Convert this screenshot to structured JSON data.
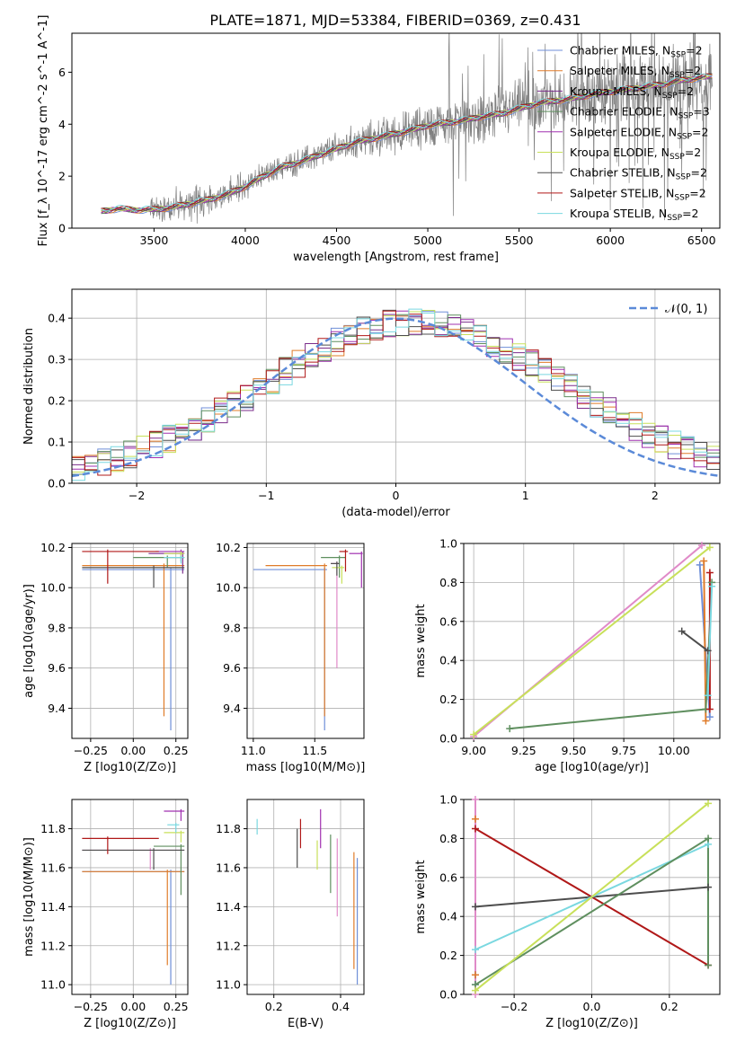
{
  "figure": {
    "title": "PLATE=1871, MJD=53384, FIBERID=0369, z=0.431"
  },
  "colors": {
    "chabrier_miles": "#6f8fd8",
    "salpeter_miles": "#e07c2a",
    "kroupa_miles": "#7b2d8b",
    "chabrier_elodie": "#5f8f5f",
    "salpeter_elodie": "#a030b0",
    "kroupa_elodie": "#c8e05a",
    "chabrier_stelib": "#4d4d4d",
    "salpeter_stelib": "#b01818",
    "kroupa_stelib": "#7ad8e0",
    "data_gray": "#808080",
    "gauss": "#5b8ad8",
    "pink": "#e08ac8"
  },
  "chart_data": [
    {
      "id": "spectrum",
      "type": "line",
      "title": "PLATE=1871, MJD=53384, FIBERID=0369, z=0.431",
      "xlabel": "wavelength [Angstrom, rest frame]",
      "ylabel": "Flux [f_λ 10^-17 erg cm^-2 s^-1 A^-1]",
      "xlim": [
        3050,
        6600
      ],
      "ylim": [
        0,
        7.5
      ],
      "xticks": [
        3500,
        4000,
        4500,
        5000,
        5500,
        6000,
        6500
      ],
      "yticks": [
        0,
        2,
        4,
        6
      ],
      "continuum": {
        "x": [
          3210,
          3300,
          3400,
          3500,
          3600,
          3700,
          3800,
          3900,
          4000,
          4100,
          4200,
          4300,
          4400,
          4500,
          4600,
          4700,
          4800,
          4900,
          5000,
          5100,
          5200,
          5300,
          5400,
          5500,
          5600,
          5700,
          5800,
          5900,
          6000,
          6100,
          6200,
          6300,
          6400,
          6560
        ],
        "y": [
          0.65,
          0.75,
          0.7,
          0.72,
          0.8,
          0.95,
          1.1,
          1.3,
          1.6,
          2.0,
          2.35,
          2.55,
          2.8,
          3.05,
          3.3,
          3.45,
          3.6,
          3.75,
          3.95,
          4.05,
          4.15,
          4.3,
          4.4,
          4.6,
          4.8,
          4.9,
          5.0,
          5.15,
          5.25,
          5.35,
          5.45,
          5.55,
          5.7,
          5.85
        ]
      },
      "series": [
        {
          "name": "Chabrier MILES, N_SSP=2",
          "color_key": "chabrier_miles"
        },
        {
          "name": "Salpeter MILES, N_SSP=2",
          "color_key": "salpeter_miles"
        },
        {
          "name": "Kroupa MILES, N_SSP=2",
          "color_key": "kroupa_miles"
        },
        {
          "name": "Chabrier ELODIE, N_SSP=3",
          "color_key": "chabrier_elodie"
        },
        {
          "name": "Salpeter ELODIE, N_SSP=2",
          "color_key": "salpeter_elodie"
        },
        {
          "name": "Kroupa ELODIE, N_SSP=2",
          "color_key": "kroupa_elodie"
        },
        {
          "name": "Chabrier STELIB, N_SSP=2",
          "color_key": "chabrier_stelib"
        },
        {
          "name": "Salpeter STELIB, N_SSP=2",
          "color_key": "salpeter_stelib"
        },
        {
          "name": "Kroupa STELIB, N_SSP=2",
          "color_key": "kroupa_stelib"
        }
      ],
      "legend": "right"
    },
    {
      "id": "residuals",
      "type": "bar",
      "xlabel": "(data-model)/error",
      "ylabel": "Normed distribution",
      "xlim": [
        -2.5,
        2.5
      ],
      "ylim": [
        0,
        0.47
      ],
      "xticks": [
        -2,
        -1,
        0,
        1,
        2
      ],
      "yticks": [
        0.0,
        0.1,
        0.2,
        0.3,
        0.4
      ],
      "grid": true,
      "gaussian_label": "𝒩(0, 1)",
      "legend": "top-right"
    },
    {
      "id": "age_vs_Z",
      "type": "scatter",
      "xlabel": "Z [log10(Z/Z⊙)]",
      "ylabel": "age [log10(age/yr)]",
      "xlim": [
        -0.36,
        0.32
      ],
      "ylim": [
        9.25,
        10.22
      ],
      "xticks": [
        -0.25,
        0.0,
        0.25
      ],
      "yticks": [
        9.4,
        9.6,
        9.8,
        10.0,
        10.2
      ],
      "grid": true,
      "points": [
        {
          "x": 0.22,
          "xerr": [
            0.52,
            0.08
          ],
          "y": 10.09,
          "yerr": [
            0.8,
            0.01
          ],
          "color_key": "chabrier_miles"
        },
        {
          "x": 0.18,
          "xerr": [
            0.48,
            0.12
          ],
          "y": 10.11,
          "yerr": [
            0.75,
            0.01
          ],
          "color_key": "salpeter_miles"
        },
        {
          "x": 0.29,
          "xerr": [
            0.2,
            0.01
          ],
          "y": 10.17,
          "yerr": [
            0.1,
            0.01
          ],
          "color_key": "kroupa_miles"
        },
        {
          "x": 0.2,
          "xerr": [
            0.2,
            0.1
          ],
          "y": 10.15,
          "yerr": [
            0.05,
            0.01
          ],
          "color_key": "chabrier_elodie"
        },
        {
          "x": 0.28,
          "xerr": [
            0.15,
            0.02
          ],
          "y": 10.18,
          "yerr": [
            0.05,
            0.01
          ],
          "color_key": "salpeter_elodie"
        },
        {
          "x": 0.28,
          "xerr": [
            0.1,
            0.02
          ],
          "y": 10.17,
          "yerr": [
            0.03,
            0.01
          ],
          "color_key": "kroupa_elodie"
        },
        {
          "x": 0.12,
          "xerr": [
            0.42,
            0.18
          ],
          "y": 10.1,
          "yerr": [
            0.1,
            0.01
          ],
          "color_key": "chabrier_stelib"
        },
        {
          "x": -0.15,
          "xerr": [
            0.15,
            0.3
          ],
          "y": 10.18,
          "yerr": [
            0.16,
            0.01
          ],
          "color_key": "salpeter_stelib"
        },
        {
          "x": 0.28,
          "xerr": [
            0.1,
            0.02
          ],
          "y": 10.15,
          "yerr": [
            0.03,
            0.01
          ],
          "color_key": "kroupa_stelib"
        }
      ]
    },
    {
      "id": "age_vs_mass",
      "type": "scatter",
      "xlabel": "mass [log10(M/M⊙)]",
      "ylabel": "",
      "xlim": [
        10.95,
        11.9
      ],
      "ylim": [
        9.25,
        10.22
      ],
      "xticks": [
        11.0,
        11.5
      ],
      "yticks": [
        9.4,
        9.6,
        9.8,
        10.0,
        10.2
      ],
      "grid": true,
      "points": [
        {
          "x": 11.58,
          "xerr": [
            0.58,
            0.02
          ],
          "y": 10.09,
          "yerr": [
            0.8,
            0.01
          ],
          "color_key": "chabrier_miles"
        },
        {
          "x": 11.58,
          "xerr": [
            0.48,
            0.02
          ],
          "y": 10.11,
          "yerr": [
            0.75,
            0.01
          ],
          "color_key": "salpeter_miles"
        },
        {
          "x": 11.88,
          "xerr": [
            0.1,
            0.01
          ],
          "y": 10.17,
          "yerr": [
            0.17,
            0.01
          ],
          "color_key": "salpeter_elodie"
        },
        {
          "x": 11.68,
          "xerr": [
            0.05,
            0.02
          ],
          "y": 10.12,
          "yerr": [
            0.52,
            0.01
          ],
          "color_key": "pink"
        },
        {
          "x": 11.7,
          "xerr": [
            0.15,
            0.05
          ],
          "y": 10.15,
          "yerr": [
            0.1,
            0.01
          ],
          "color_key": "chabrier_elodie"
        },
        {
          "x": 11.75,
          "xerr": [
            0.05,
            0.02
          ],
          "y": 10.18,
          "yerr": [
            0.1,
            0.01
          ],
          "color_key": "salpeter_stelib"
        },
        {
          "x": 11.72,
          "xerr": [
            0.08,
            0.02
          ],
          "y": 10.1,
          "yerr": [
            0.08,
            0.01
          ],
          "color_key": "kroupa_elodie"
        },
        {
          "x": 11.68,
          "xerr": [
            0.05,
            0.02
          ],
          "y": 10.12,
          "yerr": [
            0.06,
            0.01
          ],
          "color_key": "chabrier_stelib"
        }
      ]
    },
    {
      "id": "weight_vs_age",
      "type": "line",
      "xlabel": "age [log10(age/yr)]",
      "ylabel": "mass weight",
      "xlim": [
        8.95,
        10.23
      ],
      "ylim": [
        0,
        1
      ],
      "xticks": [
        9.0,
        9.25,
        9.5,
        9.75,
        10.0
      ],
      "yticks": [
        0.0,
        0.2,
        0.4,
        0.6,
        0.8,
        1.0
      ],
      "grid": true,
      "series": [
        {
          "color_key": "chabrier_miles",
          "x": [
            10.13,
            10.18
          ],
          "y": [
            0.89,
            0.11
          ]
        },
        {
          "color_key": "salpeter_miles",
          "x": [
            10.15,
            10.16
          ],
          "y": [
            0.91,
            0.09
          ]
        },
        {
          "color_key": "pink",
          "x": [
            9.0,
            10.14
          ],
          "y": [
            0.01,
            0.99
          ]
        },
        {
          "color_key": "kroupa_elodie",
          "x": [
            9.0,
            10.18
          ],
          "y": [
            0.02,
            0.98
          ]
        },
        {
          "color_key": "chabrier_elodie",
          "x": [
            9.18,
            10.16,
            10.19
          ],
          "y": [
            0.05,
            0.15,
            0.8
          ]
        },
        {
          "color_key": "chabrier_stelib",
          "x": [
            10.04,
            10.17
          ],
          "y": [
            0.55,
            0.45
          ]
        },
        {
          "color_key": "salpeter_stelib",
          "x": [
            10.18,
            10.18
          ],
          "y": [
            0.85,
            0.15
          ]
        },
        {
          "color_key": "kroupa_stelib",
          "x": [
            10.17,
            10.19
          ],
          "y": [
            0.22,
            0.78
          ]
        }
      ]
    },
    {
      "id": "mass_vs_Z",
      "type": "scatter",
      "xlabel": "Z [log10(Z/Z⊙)]",
      "ylabel": "mass [log10(M/M⊙)]",
      "xlim": [
        -0.36,
        0.32
      ],
      "ylim": [
        10.95,
        11.95
      ],
      "xticks": [
        -0.25,
        0.0,
        0.25
      ],
      "yticks": [
        11.0,
        11.2,
        11.4,
        11.6,
        11.8
      ],
      "grid": true,
      "points": [
        {
          "x": 0.22,
          "xerr": [
            0.52,
            0.08
          ],
          "y": 11.58,
          "yerr": [
            0.58,
            0.01
          ],
          "color_key": "chabrier_miles"
        },
        {
          "x": 0.2,
          "xerr": [
            0.5,
            0.1
          ],
          "y": 11.58,
          "yerr": [
            0.48,
            0.01
          ],
          "color_key": "salpeter_miles"
        },
        {
          "x": 0.1,
          "xerr": [
            0.4,
            0.2
          ],
          "y": 11.69,
          "yerr": [
            0.1,
            0.01
          ],
          "color_key": "pink"
        },
        {
          "x": 0.28,
          "xerr": [
            0.1,
            0.02
          ],
          "y": 11.89,
          "yerr": [
            0.05,
            0.01
          ],
          "color_key": "salpeter_elodie"
        },
        {
          "x": 0.28,
          "xerr": [
            0.1,
            0.02
          ],
          "y": 11.78,
          "yerr": [
            0.05,
            0.01
          ],
          "color_key": "kroupa_elodie"
        },
        {
          "x": 0.28,
          "xerr": [
            0.16,
            0.02
          ],
          "y": 11.71,
          "yerr": [
            0.25,
            0.01
          ],
          "color_key": "chabrier_elodie"
        },
        {
          "x": 0.12,
          "xerr": [
            0.42,
            0.18
          ],
          "y": 11.69,
          "yerr": [
            0.1,
            0.01
          ],
          "color_key": "chabrier_stelib"
        },
        {
          "x": -0.15,
          "xerr": [
            0.15,
            0.3
          ],
          "y": 11.75,
          "yerr": [
            0.08,
            0.01
          ],
          "color_key": "salpeter_stelib"
        },
        {
          "x": 0.25,
          "xerr": [
            0.05,
            0.02
          ],
          "y": 11.82,
          "yerr": [
            0.04,
            0.01
          ],
          "color_key": "kroupa_stelib"
        }
      ]
    },
    {
      "id": "mass_vs_ebv",
      "type": "scatter",
      "xlabel": "E(B-V)",
      "ylabel": "",
      "xlim": [
        0.12,
        0.47
      ],
      "ylim": [
        10.95,
        11.95
      ],
      "xticks": [
        0.2,
        0.4
      ],
      "yticks": [
        11.0,
        11.2,
        11.4,
        11.6,
        11.8
      ],
      "grid": true,
      "points": [
        {
          "x": 0.15,
          "y": 11.82,
          "yerr": [
            0.05,
            0.03
          ],
          "color_key": "kroupa_stelib"
        },
        {
          "x": 0.27,
          "y": 11.7,
          "yerr": [
            0.1,
            0.1
          ],
          "color_key": "chabrier_stelib"
        },
        {
          "x": 0.28,
          "y": 11.75,
          "yerr": [
            0.05,
            0.1
          ],
          "color_key": "salpeter_stelib"
        },
        {
          "x": 0.33,
          "y": 11.69,
          "yerr": [
            0.1,
            0.05
          ],
          "color_key": "kroupa_elodie"
        },
        {
          "x": 0.34,
          "y": 11.8,
          "yerr": [
            0.1,
            0.1
          ],
          "color_key": "salpeter_elodie"
        },
        {
          "x": 0.37,
          "y": 11.57,
          "yerr": [
            0.1,
            0.2
          ],
          "color_key": "chabrier_elodie"
        },
        {
          "x": 0.39,
          "y": 11.55,
          "yerr": [
            0.2,
            0.2
          ],
          "color_key": "pink"
        },
        {
          "x": 0.44,
          "y": 11.38,
          "yerr": [
            0.3,
            0.3
          ],
          "color_key": "salpeter_miles"
        },
        {
          "x": 0.45,
          "y": 11.3,
          "yerr": [
            0.3,
            0.35
          ],
          "color_key": "chabrier_miles"
        }
      ]
    },
    {
      "id": "weight_vs_Z",
      "type": "line",
      "xlabel": "Z [log10(Z/Z⊙)]",
      "ylabel": "mass weight",
      "xlim": [
        -0.33,
        0.33
      ],
      "ylim": [
        0,
        1
      ],
      "xticks": [
        -0.2,
        0.0,
        0.2
      ],
      "yticks": [
        0.0,
        0.2,
        0.4,
        0.6,
        0.8,
        1.0
      ],
      "grid": true,
      "series": [
        {
          "color_key": "chabrier_miles",
          "x": [
            -0.3,
            -0.3
          ],
          "y": [
            0.05,
            0.1
          ]
        },
        {
          "color_key": "salpeter_miles",
          "x": [
            -0.3,
            -0.3
          ],
          "y": [
            0.1,
            0.9
          ]
        },
        {
          "color_key": "pink",
          "x": [
            -0.3,
            -0.3
          ],
          "y": [
            0.0,
            1.0
          ]
        },
        {
          "color_key": "salpeter_stelib",
          "x": [
            -0.3,
            0.3
          ],
          "y": [
            0.85,
            0.15
          ]
        },
        {
          "color_key": "chabrier_stelib",
          "x": [
            -0.3,
            0.3
          ],
          "y": [
            0.45,
            0.55
          ]
        },
        {
          "color_key": "kroupa_stelib",
          "x": [
            -0.3,
            0.3
          ],
          "y": [
            0.23,
            0.77
          ]
        },
        {
          "color_key": "chabrier_elodie",
          "x": [
            -0.3,
            0.3,
            0.3
          ],
          "y": [
            0.05,
            0.8,
            0.15
          ]
        },
        {
          "color_key": "kroupa_elodie",
          "x": [
            -0.3,
            0.3
          ],
          "y": [
            0.02,
            0.98
          ]
        }
      ]
    }
  ]
}
